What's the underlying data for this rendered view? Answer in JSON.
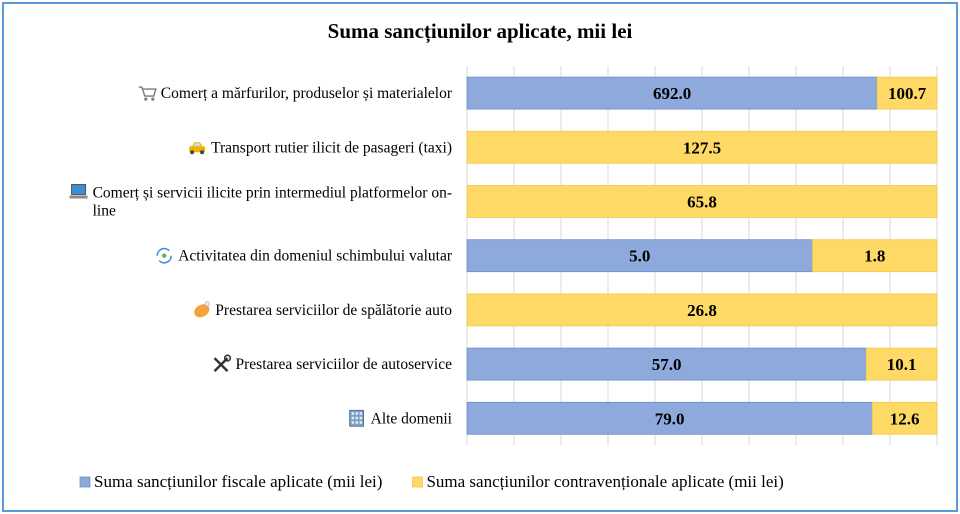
{
  "chart_data": {
    "type": "bar",
    "orientation": "horizontal",
    "stacked": true,
    "normalized": true,
    "title": "Suma sancțiunilor aplicate, mii lei",
    "categories": [
      {
        "label": [
          "Comerț a mărfurilor,  produselor și materialelor"
        ],
        "icon": "shopping-cart-icon"
      },
      {
        "label": [
          "Transport rutier ilicit  de pasageri (taxi)"
        ],
        "icon": "taxi-icon"
      },
      {
        "label": [
          "Comerț și servicii ilicite  prin intermediul  platformelor on-",
          "line"
        ],
        "icon": "laptop-icon"
      },
      {
        "label": [
          "Activitatea  din domeniul  schimbului  valutar"
        ],
        "icon": "currency-exchange-icon"
      },
      {
        "label": [
          "Prestarea serviciilor  de spălătorie auto"
        ],
        "icon": "soap-icon"
      },
      {
        "label": [
          "Prestarea serviciilor  de autoservice"
        ],
        "icon": "tools-icon"
      },
      {
        "label": [
          "Alte  domenii"
        ],
        "icon": "building-icon"
      }
    ],
    "series": [
      {
        "name": "Suma sancțiunilor fiscale aplicate (mii lei)",
        "color": "#8ea9db",
        "values": [
          692.0,
          0,
          0,
          5.0,
          0,
          57.0,
          79.0
        ],
        "labels": [
          "692.0",
          "",
          "",
          "5.0",
          "",
          "57.0",
          "79.0"
        ]
      },
      {
        "name": "Suma sancțiunilor contravenționale aplicate (mii lei)",
        "color": "#ffd966",
        "values": [
          100.7,
          127.5,
          65.8,
          1.8,
          26.8,
          10.1,
          12.6
        ],
        "labels": [
          "100.7",
          "127.5",
          "65.8",
          "1.8",
          "26.8",
          "10.1",
          "12.6"
        ]
      }
    ],
    "xlim": [
      0,
      1
    ],
    "grid": true,
    "legend_position": "bottom"
  }
}
